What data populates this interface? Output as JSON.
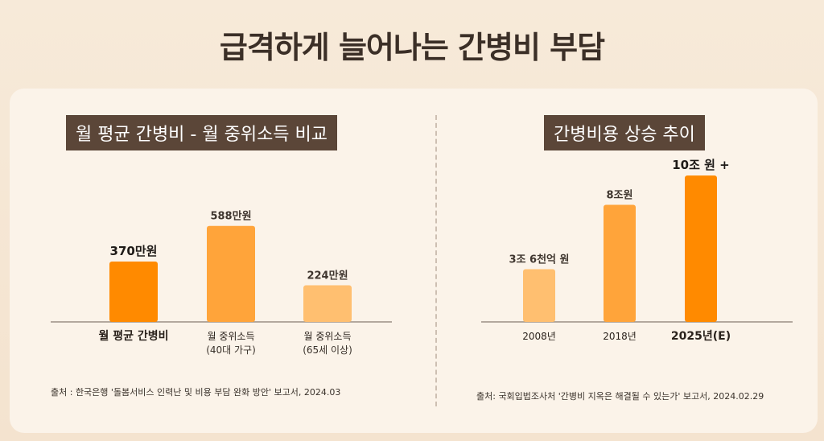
{
  "title": "급격하게 늘어나는 간병비 부담",
  "colors": {
    "dark": "#ff8a00",
    "mid": "#ffa43a",
    "light": "#ffbf70"
  },
  "chart_data": [
    {
      "type": "bar",
      "title": "월 평균 간병비 - 월 중위소득 비교",
      "categories": [
        {
          "line1": "월 평균 간병비",
          "line2": ""
        },
        {
          "line1": "월 중위소득",
          "line2": "(40대 가구)"
        },
        {
          "line1": "월 중위소득",
          "line2": "(65세 이상)"
        }
      ],
      "values": [
        370,
        588,
        224
      ],
      "value_labels": [
        "370만원",
        "588만원",
        "224만원"
      ],
      "unit": "만원",
      "ylim": [
        0,
        700
      ],
      "source": "출처 : 한국은행 '돌봄서비스 인력난 및 비용 부담 완화 방안' 보고서, 2024.03"
    },
    {
      "type": "bar",
      "title": "간병비용 상승 추이",
      "categories": [
        {
          "line1": "2008년",
          "line2": ""
        },
        {
          "line1": "2018년",
          "line2": ""
        },
        {
          "line1": "2025년(E)",
          "line2": ""
        }
      ],
      "values": [
        3.6,
        8,
        10
      ],
      "value_labels": [
        "3조 6천억 원",
        "8조원",
        "10조 원 +"
      ],
      "unit": "조 원",
      "ylim": [
        0,
        11
      ],
      "source": "출처: 국회입법조사처 '간병비 지옥은 해결될 수 있는가' 보고서, 2024.02.29"
    }
  ]
}
